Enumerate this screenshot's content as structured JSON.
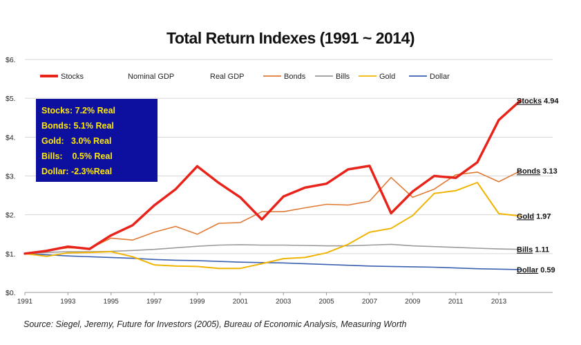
{
  "chart_data": {
    "type": "line",
    "title": "Total Return Indexes (1991 ~ 2014)",
    "xlabel": "",
    "ylabel": "",
    "x_ticks": [
      "1991",
      "1993",
      "1995",
      "1997",
      "1999",
      "2001",
      "2003",
      "2005",
      "2007",
      "2009",
      "2011",
      "2013"
    ],
    "y_ticks": [
      "$0.",
      "$1.",
      "$2.",
      "$3.",
      "$4.",
      "$5.",
      "$6."
    ],
    "xlim": [
      1991,
      2015.5
    ],
    "ylim": [
      0,
      6
    ],
    "grid": "horizontal",
    "legend_position": "top",
    "legend": [
      "Stocks",
      "Nominal GDP",
      "Real GDP",
      "Bonds",
      "Bills",
      "Gold",
      "Dollar"
    ],
    "x": [
      1991,
      1992,
      1993,
      1994,
      1995,
      1996,
      1997,
      1998,
      1999,
      2000,
      2001,
      2002,
      2003,
      2004,
      2005,
      2006,
      2007,
      2008,
      2009,
      2010,
      2011,
      2012,
      2013,
      2014
    ],
    "series": [
      {
        "name": "Stocks",
        "color": "#e8231a",
        "width": 3.5,
        "values": [
          1.0,
          1.07,
          1.18,
          1.12,
          1.47,
          1.73,
          2.24,
          2.66,
          3.25,
          2.82,
          2.45,
          1.88,
          2.47,
          2.7,
          2.8,
          3.17,
          3.26,
          2.04,
          2.6,
          3.0,
          2.95,
          3.35,
          4.44,
          4.94
        ]
      },
      {
        "name": "Bonds",
        "color": "#e07a34",
        "width": 1.6,
        "values": [
          1.0,
          1.08,
          1.15,
          1.13,
          1.4,
          1.35,
          1.55,
          1.7,
          1.5,
          1.78,
          1.8,
          2.08,
          2.08,
          2.18,
          2.27,
          2.25,
          2.35,
          2.96,
          2.45,
          2.66,
          3.03,
          3.1,
          2.85,
          3.13
        ]
      },
      {
        "name": "Bills",
        "color": "#9a9a9a",
        "width": 1.6,
        "values": [
          1.0,
          1.03,
          1.05,
          1.05,
          1.06,
          1.08,
          1.11,
          1.15,
          1.19,
          1.22,
          1.23,
          1.22,
          1.22,
          1.21,
          1.2,
          1.2,
          1.22,
          1.24,
          1.2,
          1.18,
          1.16,
          1.14,
          1.12,
          1.11
        ]
      },
      {
        "name": "Gold",
        "color": "#f0b400",
        "width": 2.0,
        "values": [
          1.0,
          0.93,
          1.02,
          1.03,
          1.05,
          0.92,
          0.71,
          0.68,
          0.67,
          0.62,
          0.62,
          0.74,
          0.87,
          0.9,
          1.02,
          1.24,
          1.55,
          1.65,
          1.98,
          2.55,
          2.62,
          2.83,
          2.03,
          1.97
        ]
      },
      {
        "name": "Dollar",
        "color": "#3a5fb0",
        "width": 1.6,
        "values": [
          1.0,
          0.97,
          0.94,
          0.92,
          0.9,
          0.88,
          0.85,
          0.83,
          0.82,
          0.8,
          0.78,
          0.77,
          0.76,
          0.74,
          0.72,
          0.7,
          0.68,
          0.67,
          0.66,
          0.65,
          0.63,
          0.61,
          0.6,
          0.59
        ]
      }
    ],
    "end_labels": [
      {
        "series": "Stocks",
        "text": "Stocks",
        "value": "4.94"
      },
      {
        "series": "Bonds",
        "text": "Bonds",
        "value": "3.13"
      },
      {
        "series": "Gold",
        "text": "Gold",
        "value": "1.97"
      },
      {
        "series": "Bills",
        "text": "Bills",
        "value": "1.11"
      },
      {
        "series": "Dollar",
        "text": "Dollar",
        "value": "0.59"
      }
    ],
    "annotation_box": {
      "lines": [
        "Stocks: 7.2% Real",
        "Bonds: 5.1% Real",
        "Gold:   3.0% Real",
        "Bills:    0.5% Real",
        "Dollar: -2.3%Real"
      ],
      "background": "#0d0f9e",
      "text_color": "#ffea00"
    },
    "legend_items": [
      {
        "label": "Stocks",
        "color": "#e8231a",
        "marker": "line"
      },
      {
        "label": "Nominal GDP",
        "color": "",
        "marker": "none"
      },
      {
        "label": "Real GDP",
        "color": "",
        "marker": "none"
      },
      {
        "label": "Bonds",
        "color": "#e07a34",
        "marker": "line"
      },
      {
        "label": "Bills",
        "color": "#9a9a9a",
        "marker": "line"
      },
      {
        "label": "Gold",
        "color": "#f0b400",
        "marker": "line"
      },
      {
        "label": "Dollar",
        "color": "#3a5fb0",
        "marker": "line"
      }
    ]
  },
  "source": "Source: Siegel, Jeremy, Future for Investors (2005), Bureau of Economic Analysis, Measuring Worth"
}
